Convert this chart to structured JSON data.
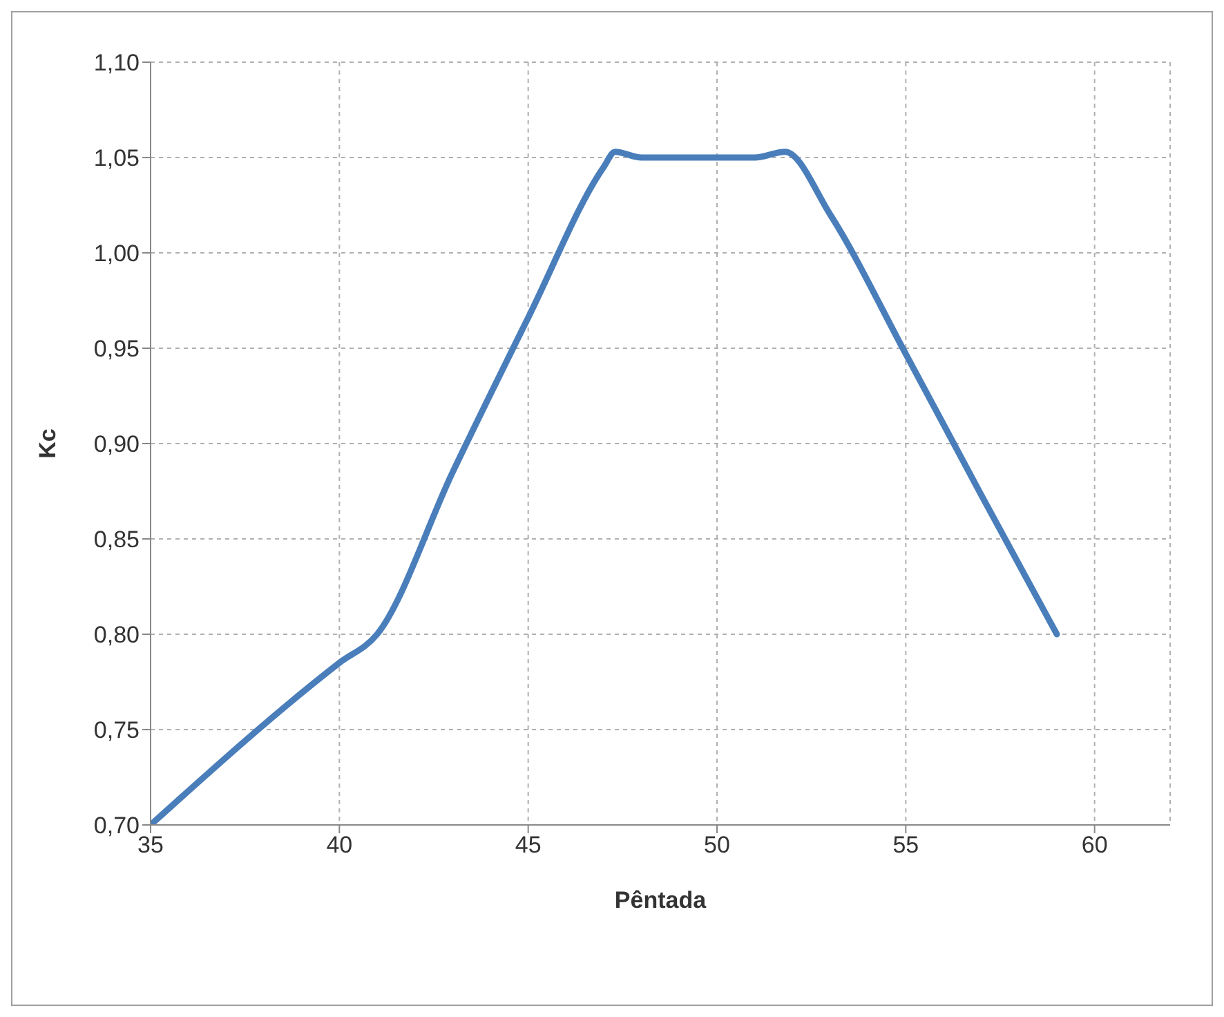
{
  "chart_data": {
    "type": "line",
    "xlabel": "Pêntada",
    "ylabel": "Kc",
    "series": [
      {
        "color": "#4a7ebb",
        "x": [
          35,
          40,
          41,
          43,
          45,
          47,
          47.3,
          48,
          51,
          51.8,
          53,
          55,
          57,
          59
        ],
        "values": [
          0.7,
          0.785,
          0.8,
          0.885,
          0.966,
          1.045,
          1.053,
          1.05,
          1.05,
          1.053,
          1.02,
          0.947,
          0.873,
          0.8
        ]
      }
    ],
    "xlim": [
      35,
      62
    ],
    "xticks": [
      35,
      40,
      45,
      50,
      55,
      60
    ],
    "ylim": [
      0.7,
      1.1
    ],
    "yticks": [
      {
        "value": 0.7,
        "label": "0,70"
      },
      {
        "value": 0.75,
        "label": "0,75"
      },
      {
        "value": 0.8,
        "label": "0,80"
      },
      {
        "value": 0.85,
        "label": "0,85"
      },
      {
        "value": 0.9,
        "label": "0,90"
      },
      {
        "value": 0.95,
        "label": "0,95"
      },
      {
        "value": 1.0,
        "label": "1,00"
      },
      {
        "value": 1.05,
        "label": "1,05"
      },
      {
        "value": 1.1,
        "label": "1,10"
      }
    ],
    "grid": true,
    "marker": "none",
    "line_style": "solid"
  }
}
